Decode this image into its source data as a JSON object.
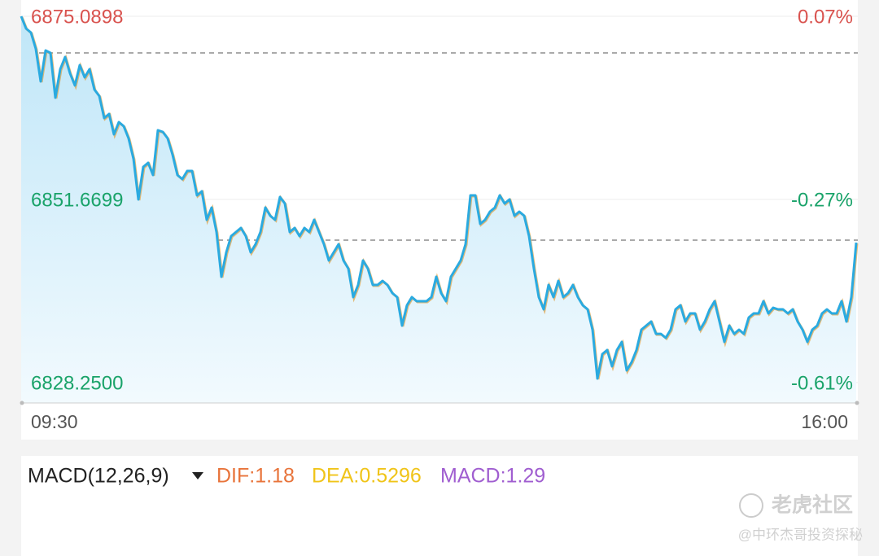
{
  "chart_data": {
    "type": "line",
    "ylim": [
      6828.25,
      6875.0898
    ],
    "yticks": [
      6875.0898,
      6851.6699,
      {
        "value": 6828.25,
        "label": "6828.2500"
      }
    ],
    "y2lim": [
      -0.61,
      0.07
    ],
    "y2ticks": [
      {
        "value": 0.07,
        "label": "0.07%"
      },
      {
        "value": -0.27,
        "label": "-0.27%"
      },
      {
        "value": -0.61,
        "label": "-0.61%"
      }
    ],
    "xtick_labels": [
      "09:30",
      "16:00"
    ],
    "ref_lines": [
      6870.41,
      6846.47
    ],
    "grid": true,
    "series": [
      {
        "color": "#2aaae0",
        "values": [
          6875.09,
          6873.53,
          6873.01,
          6870.93,
          6866.76,
          6870.72,
          6870.41,
          6864.68,
          6868.32,
          6869.89,
          6867.8,
          6866.24,
          6868.84,
          6867.28,
          6868.32,
          6865.72,
          6864.89,
          6862.08,
          6862.6,
          6860.0,
          6861.56,
          6861.04,
          6859.48,
          6856.87,
          6851.67,
          6855.83,
          6856.35,
          6854.79,
          6860.52,
          6860.31,
          6859.48,
          6857.39,
          6854.79,
          6854.27,
          6855.31,
          6855.31,
          6852.19,
          6852.71,
          6849.07,
          6850.63,
          6847.51,
          6841.78,
          6844.9,
          6846.99,
          6847.51,
          6848.03,
          6846.99,
          6844.9,
          6845.94,
          6847.51,
          6850.63,
          6849.59,
          6849.07,
          6851.98,
          6851.15,
          6847.51,
          6848.03,
          6846.99,
          6848.03,
          6847.51,
          6849.07,
          6847.51,
          6845.94,
          6843.86,
          6844.9,
          6845.94,
          6843.86,
          6842.82,
          6839.18,
          6840.74,
          6843.86,
          6842.82,
          6840.74,
          6840.74,
          6841.26,
          6840.74,
          6839.7,
          6839.18,
          6835.54,
          6838.14,
          6839.18,
          6838.66,
          6838.66,
          6838.66,
          6839.18,
          6841.78,
          6839.7,
          6838.66,
          6841.78,
          6842.82,
          6843.86,
          6845.94,
          6852.19,
          6852.19,
          6848.55,
          6849.07,
          6850.11,
          6850.63,
          6852.19,
          6851.15,
          6851.67,
          6849.59,
          6850.11,
          6849.59,
          6846.99,
          6842.82,
          6839.18,
          6837.62,
          6840.74,
          6839.18,
          6841.26,
          6839.18,
          6839.7,
          6840.74,
          6839.18,
          6838.14,
          6837.62,
          6835.02,
          6828.77,
          6831.89,
          6832.41,
          6830.33,
          6832.41,
          6833.45,
          6829.81,
          6830.85,
          6832.41,
          6835.02,
          6835.54,
          6836.06,
          6834.49,
          6834.49,
          6833.97,
          6835.02,
          6837.62,
          6838.14,
          6836.06,
          6837.1,
          6837.1,
          6835.02,
          6836.06,
          6837.62,
          6838.66,
          6836.06,
          6833.45,
          6835.54,
          6834.49,
          6835.02,
          6834.49,
          6836.58,
          6837.1,
          6837.1,
          6838.66,
          6837.1,
          6837.83,
          6837.62,
          6837.62,
          6837.1,
          6837.62,
          6836.06,
          6835.02,
          6833.45,
          6835.02,
          6835.54,
          6837.1,
          6837.62,
          6837.1,
          6837.1,
          6838.66,
          6836.06,
          6839.18,
          6846.15
        ]
      }
    ]
  },
  "macd": {
    "title": "MACD(12,26,9)",
    "dif": "DIF:1.18",
    "dea": "DEA:0.5296",
    "macd": "MACD:1.29"
  },
  "watermark": {
    "brand": "老虎社区",
    "author": "@中环杰哥投资探秘"
  }
}
